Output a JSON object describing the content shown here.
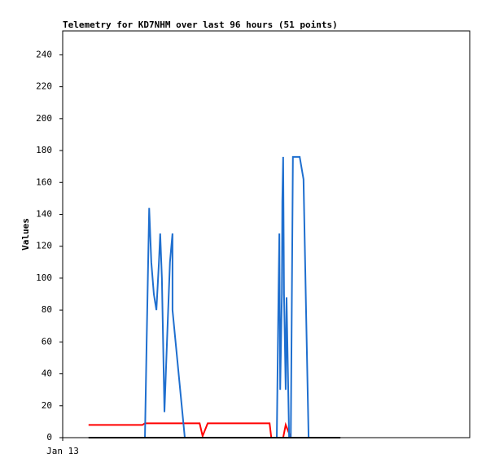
{
  "chart_data": {
    "type": "line",
    "title": "Telemetry for KD7NHM over last 96 hours (51 points)",
    "ylabel": "Values",
    "xlim": [
      0,
      96
    ],
    "xticks": [
      {
        "value": 0,
        "label": "Jan 13"
      }
    ],
    "ylim": [
      0,
      255
    ],
    "yticks": [
      0,
      20,
      40,
      60,
      80,
      100,
      120,
      140,
      160,
      180,
      200,
      220,
      240
    ],
    "series": [
      {
        "color": "#ff0000",
        "x": [
          6.1,
          18.8,
          19.4,
          32.3,
          33.0,
          34.2,
          48.8,
          49.2,
          52.0,
          52.6,
          53.8
        ],
        "values": [
          8,
          8,
          9,
          9,
          1,
          9,
          9,
          0,
          0,
          8,
          0
        ]
      },
      {
        "color": "#1f6fcf",
        "x": [
          19.4,
          19.8,
          20.4,
          20.9,
          21.5,
          22.1,
          22.7,
          23.0,
          23.4,
          24.0,
          24.6,
          25.3,
          25.9,
          25.9,
          28.8,
          50.5,
          50.9,
          51.1,
          51.3,
          51.7,
          51.8,
          52.0,
          52.2,
          52.6,
          52.8,
          53.4,
          53.8,
          54.3,
          55.9,
          56.8,
          57.4,
          58.0
        ],
        "values": [
          0,
          60,
          144,
          110,
          90,
          80,
          110,
          128,
          100,
          16,
          60,
          110,
          128,
          80,
          0,
          0,
          90,
          128,
          30,
          90,
          148,
          176,
          90,
          30,
          88,
          0,
          0,
          176,
          176,
          162,
          80,
          0
        ]
      },
      {
        "color": "#000000",
        "x": [
          6.1,
          65.5
        ],
        "values": [
          0,
          0
        ]
      }
    ]
  }
}
